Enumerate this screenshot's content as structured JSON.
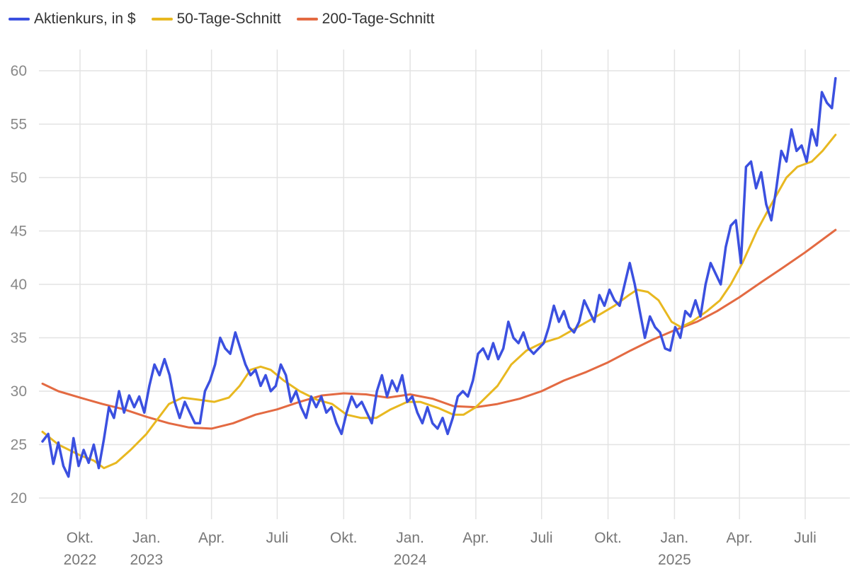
{
  "chart_data": {
    "type": "line",
    "title": "",
    "xlabel": "",
    "ylabel": "",
    "ylim": [
      20,
      60
    ],
    "y_ticks": [
      20,
      25,
      30,
      35,
      40,
      45,
      50,
      55,
      60
    ],
    "grid": true,
    "legend_position": "top-left",
    "x_ticks": [
      {
        "date": "2022-10-01",
        "label": "Okt.",
        "year": "2022"
      },
      {
        "date": "2023-01-01",
        "label": "Jan.",
        "year": "2023"
      },
      {
        "date": "2023-04-01",
        "label": "Apr.",
        "year": ""
      },
      {
        "date": "2023-07-01",
        "label": "Juli",
        "year": ""
      },
      {
        "date": "2023-10-01",
        "label": "Okt.",
        "year": ""
      },
      {
        "date": "2024-01-01",
        "label": "Jan.",
        "year": "2024"
      },
      {
        "date": "2024-04-01",
        "label": "Apr.",
        "year": ""
      },
      {
        "date": "2024-07-01",
        "label": "Juli",
        "year": ""
      },
      {
        "date": "2024-10-01",
        "label": "Okt.",
        "year": ""
      },
      {
        "date": "2025-01-01",
        "label": "Jan.",
        "year": "2025"
      },
      {
        "date": "2025-04-01",
        "label": "Apr.",
        "year": ""
      },
      {
        "date": "2025-07-01",
        "label": "Juli",
        "year": ""
      }
    ],
    "series": [
      {
        "name": "Aktienkurs, in $",
        "color": "#3b50e0",
        "points": [
          [
            "2022-08-10",
            25.3
          ],
          [
            "2022-08-18",
            26.0
          ],
          [
            "2022-08-25",
            23.2
          ],
          [
            "2022-09-01",
            25.2
          ],
          [
            "2022-09-08",
            23.0
          ],
          [
            "2022-09-15",
            22.0
          ],
          [
            "2022-09-22",
            25.6
          ],
          [
            "2022-09-29",
            23.0
          ],
          [
            "2022-10-06",
            24.5
          ],
          [
            "2022-10-13",
            23.3
          ],
          [
            "2022-10-20",
            25.0
          ],
          [
            "2022-10-27",
            22.8
          ],
          [
            "2022-11-03",
            25.5
          ],
          [
            "2022-11-10",
            28.5
          ],
          [
            "2022-11-17",
            27.5
          ],
          [
            "2022-11-24",
            30.0
          ],
          [
            "2022-12-01",
            28.0
          ],
          [
            "2022-12-08",
            29.6
          ],
          [
            "2022-12-15",
            28.5
          ],
          [
            "2022-12-22",
            29.5
          ],
          [
            "2022-12-29",
            28.0
          ],
          [
            "2023-01-05",
            30.5
          ],
          [
            "2023-01-12",
            32.5
          ],
          [
            "2023-01-19",
            31.5
          ],
          [
            "2023-01-26",
            33.0
          ],
          [
            "2023-02-02",
            31.5
          ],
          [
            "2023-02-09",
            29.0
          ],
          [
            "2023-02-16",
            27.5
          ],
          [
            "2023-02-23",
            29.0
          ],
          [
            "2023-03-02",
            28.0
          ],
          [
            "2023-03-09",
            27.0
          ],
          [
            "2023-03-16",
            27.0
          ],
          [
            "2023-03-23",
            30.0
          ],
          [
            "2023-03-30",
            31.0
          ],
          [
            "2023-04-06",
            32.5
          ],
          [
            "2023-04-13",
            35.0
          ],
          [
            "2023-04-20",
            34.0
          ],
          [
            "2023-04-27",
            33.5
          ],
          [
            "2023-05-04",
            35.5
          ],
          [
            "2023-05-11",
            34.0
          ],
          [
            "2023-05-18",
            32.5
          ],
          [
            "2023-05-25",
            31.5
          ],
          [
            "2023-06-01",
            32.0
          ],
          [
            "2023-06-08",
            30.5
          ],
          [
            "2023-06-15",
            31.5
          ],
          [
            "2023-06-22",
            30.0
          ],
          [
            "2023-06-29",
            30.5
          ],
          [
            "2023-07-06",
            32.5
          ],
          [
            "2023-07-13",
            31.5
          ],
          [
            "2023-07-20",
            29.0
          ],
          [
            "2023-07-27",
            30.0
          ],
          [
            "2023-08-03",
            28.5
          ],
          [
            "2023-08-10",
            27.5
          ],
          [
            "2023-08-17",
            29.5
          ],
          [
            "2023-08-24",
            28.5
          ],
          [
            "2023-08-31",
            29.5
          ],
          [
            "2023-09-07",
            28.0
          ],
          [
            "2023-09-14",
            28.5
          ],
          [
            "2023-09-21",
            27.0
          ],
          [
            "2023-09-28",
            26.0
          ],
          [
            "2023-10-05",
            28.0
          ],
          [
            "2023-10-12",
            29.5
          ],
          [
            "2023-10-19",
            28.5
          ],
          [
            "2023-10-26",
            29.0
          ],
          [
            "2023-11-02",
            28.0
          ],
          [
            "2023-11-09",
            27.0
          ],
          [
            "2023-11-16",
            30.0
          ],
          [
            "2023-11-23",
            31.5
          ],
          [
            "2023-11-30",
            29.5
          ],
          [
            "2023-12-07",
            31.0
          ],
          [
            "2023-12-14",
            30.0
          ],
          [
            "2023-12-21",
            31.5
          ],
          [
            "2023-12-28",
            29.0
          ],
          [
            "2024-01-04",
            29.5
          ],
          [
            "2024-01-11",
            28.0
          ],
          [
            "2024-01-18",
            27.0
          ],
          [
            "2024-01-25",
            28.5
          ],
          [
            "2024-02-01",
            27.0
          ],
          [
            "2024-02-08",
            26.5
          ],
          [
            "2024-02-15",
            27.5
          ],
          [
            "2024-02-22",
            26.0
          ],
          [
            "2024-02-29",
            27.5
          ],
          [
            "2024-03-07",
            29.5
          ],
          [
            "2024-03-14",
            30.0
          ],
          [
            "2024-03-21",
            29.5
          ],
          [
            "2024-03-28",
            31.0
          ],
          [
            "2024-04-04",
            33.5
          ],
          [
            "2024-04-11",
            34.0
          ],
          [
            "2024-04-18",
            33.0
          ],
          [
            "2024-04-25",
            34.5
          ],
          [
            "2024-05-02",
            33.0
          ],
          [
            "2024-05-09",
            34.0
          ],
          [
            "2024-05-16",
            36.5
          ],
          [
            "2024-05-23",
            35.0
          ],
          [
            "2024-05-30",
            34.5
          ],
          [
            "2024-06-06",
            35.5
          ],
          [
            "2024-06-13",
            34.0
          ],
          [
            "2024-06-20",
            33.5
          ],
          [
            "2024-06-27",
            34.0
          ],
          [
            "2024-07-04",
            34.5
          ],
          [
            "2024-07-11",
            36.0
          ],
          [
            "2024-07-18",
            38.0
          ],
          [
            "2024-07-25",
            36.5
          ],
          [
            "2024-08-01",
            37.5
          ],
          [
            "2024-08-08",
            36.0
          ],
          [
            "2024-08-15",
            35.5
          ],
          [
            "2024-08-22",
            36.5
          ],
          [
            "2024-08-29",
            38.5
          ],
          [
            "2024-09-05",
            37.5
          ],
          [
            "2024-09-12",
            36.5
          ],
          [
            "2024-09-19",
            39.0
          ],
          [
            "2024-09-26",
            38.0
          ],
          [
            "2024-10-03",
            39.5
          ],
          [
            "2024-10-10",
            38.5
          ],
          [
            "2024-10-17",
            38.0
          ],
          [
            "2024-10-24",
            40.0
          ],
          [
            "2024-10-31",
            42.0
          ],
          [
            "2024-11-07",
            40.0
          ],
          [
            "2024-11-14",
            37.5
          ],
          [
            "2024-11-21",
            35.0
          ],
          [
            "2024-11-28",
            37.0
          ],
          [
            "2024-12-05",
            36.0
          ],
          [
            "2024-12-12",
            35.5
          ],
          [
            "2024-12-19",
            34.0
          ],
          [
            "2024-12-26",
            33.8
          ],
          [
            "2025-01-02",
            36.0
          ],
          [
            "2025-01-09",
            35.0
          ],
          [
            "2025-01-16",
            37.5
          ],
          [
            "2025-01-23",
            37.0
          ],
          [
            "2025-01-30",
            38.5
          ],
          [
            "2025-02-06",
            37.0
          ],
          [
            "2025-02-13",
            40.0
          ],
          [
            "2025-02-20",
            42.0
          ],
          [
            "2025-02-27",
            41.0
          ],
          [
            "2025-03-06",
            40.0
          ],
          [
            "2025-03-13",
            43.5
          ],
          [
            "2025-03-20",
            45.5
          ],
          [
            "2025-03-27",
            46.0
          ],
          [
            "2025-04-03",
            42.0
          ],
          [
            "2025-04-10",
            51.0
          ],
          [
            "2025-04-17",
            51.5
          ],
          [
            "2025-04-24",
            49.0
          ],
          [
            "2025-05-01",
            50.5
          ],
          [
            "2025-05-08",
            47.5
          ],
          [
            "2025-05-15",
            46.0
          ],
          [
            "2025-05-22",
            49.0
          ],
          [
            "2025-05-29",
            52.5
          ],
          [
            "2025-06-05",
            51.5
          ],
          [
            "2025-06-12",
            54.5
          ],
          [
            "2025-06-19",
            52.5
          ],
          [
            "2025-06-26",
            53.0
          ],
          [
            "2025-07-03",
            51.5
          ],
          [
            "2025-07-10",
            54.5
          ],
          [
            "2025-07-17",
            53.0
          ],
          [
            "2025-07-24",
            58.0
          ],
          [
            "2025-07-31",
            57.0
          ],
          [
            "2025-08-07",
            56.5
          ],
          [
            "2025-08-12",
            59.3
          ]
        ]
      },
      {
        "name": "50-Tage-Schnitt",
        "color": "#e8b820",
        "points": [
          [
            "2022-08-10",
            26.2
          ],
          [
            "2022-09-01",
            25.0
          ],
          [
            "2022-10-01",
            24.0
          ],
          [
            "2022-10-20",
            23.5
          ],
          [
            "2022-11-03",
            22.8
          ],
          [
            "2022-11-20",
            23.3
          ],
          [
            "2022-12-10",
            24.5
          ],
          [
            "2023-01-01",
            26.0
          ],
          [
            "2023-02-01",
            28.8
          ],
          [
            "2023-02-20",
            29.4
          ],
          [
            "2023-03-15",
            29.2
          ],
          [
            "2023-04-05",
            29.0
          ],
          [
            "2023-04-25",
            29.4
          ],
          [
            "2023-05-10",
            30.5
          ],
          [
            "2023-05-25",
            32.0
          ],
          [
            "2023-06-08",
            32.3
          ],
          [
            "2023-06-22",
            32.0
          ],
          [
            "2023-07-10",
            31.0
          ],
          [
            "2023-08-01",
            30.0
          ],
          [
            "2023-08-25",
            29.2
          ],
          [
            "2023-09-15",
            28.8
          ],
          [
            "2023-10-05",
            27.8
          ],
          [
            "2023-10-25",
            27.5
          ],
          [
            "2023-11-15",
            27.5
          ],
          [
            "2023-12-05",
            28.3
          ],
          [
            "2023-12-28",
            29.0
          ],
          [
            "2024-01-15",
            29.0
          ],
          [
            "2024-02-10",
            28.4
          ],
          [
            "2024-03-01",
            27.8
          ],
          [
            "2024-03-15",
            27.8
          ],
          [
            "2024-04-01",
            28.5
          ],
          [
            "2024-05-01",
            30.5
          ],
          [
            "2024-05-20",
            32.5
          ],
          [
            "2024-06-10",
            33.8
          ],
          [
            "2024-07-01",
            34.5
          ],
          [
            "2024-07-25",
            35.0
          ],
          [
            "2024-08-20",
            36.0
          ],
          [
            "2024-09-15",
            37.0
          ],
          [
            "2024-10-10",
            38.0
          ],
          [
            "2024-10-30",
            39.0
          ],
          [
            "2024-11-10",
            39.5
          ],
          [
            "2024-11-25",
            39.3
          ],
          [
            "2024-12-10",
            38.5
          ],
          [
            "2024-12-28",
            36.5
          ],
          [
            "2025-01-10",
            36.0
          ],
          [
            "2025-01-25",
            36.5
          ],
          [
            "2025-02-15",
            37.5
          ],
          [
            "2025-03-05",
            38.5
          ],
          [
            "2025-03-20",
            40.0
          ],
          [
            "2025-04-05",
            42.0
          ],
          [
            "2025-04-25",
            45.0
          ],
          [
            "2025-05-15",
            47.5
          ],
          [
            "2025-06-05",
            50.0
          ],
          [
            "2025-06-20",
            51.0
          ],
          [
            "2025-07-10",
            51.5
          ],
          [
            "2025-07-25",
            52.5
          ],
          [
            "2025-08-12",
            54.0
          ]
        ]
      },
      {
        "name": "200-Tage-Schnitt",
        "color": "#e36a42",
        "points": [
          [
            "2022-08-10",
            30.7
          ],
          [
            "2022-09-01",
            30.0
          ],
          [
            "2022-10-01",
            29.4
          ],
          [
            "2022-11-01",
            28.8
          ],
          [
            "2022-12-01",
            28.3
          ],
          [
            "2023-01-01",
            27.6
          ],
          [
            "2023-02-01",
            27.0
          ],
          [
            "2023-03-01",
            26.6
          ],
          [
            "2023-04-01",
            26.5
          ],
          [
            "2023-05-01",
            27.0
          ],
          [
            "2023-06-01",
            27.8
          ],
          [
            "2023-07-01",
            28.3
          ],
          [
            "2023-08-01",
            29.0
          ],
          [
            "2023-09-01",
            29.6
          ],
          [
            "2023-10-01",
            29.8
          ],
          [
            "2023-11-01",
            29.7
          ],
          [
            "2023-12-01",
            29.4
          ],
          [
            "2024-01-01",
            29.7
          ],
          [
            "2024-02-01",
            29.3
          ],
          [
            "2024-03-01",
            28.6
          ],
          [
            "2024-04-01",
            28.5
          ],
          [
            "2024-05-01",
            28.8
          ],
          [
            "2024-06-01",
            29.3
          ],
          [
            "2024-07-01",
            30.0
          ],
          [
            "2024-08-01",
            31.0
          ],
          [
            "2024-09-01",
            31.8
          ],
          [
            "2024-10-01",
            32.7
          ],
          [
            "2024-11-01",
            33.8
          ],
          [
            "2024-12-01",
            34.8
          ],
          [
            "2025-01-01",
            35.7
          ],
          [
            "2025-02-01",
            36.5
          ],
          [
            "2025-03-01",
            37.5
          ],
          [
            "2025-04-01",
            38.8
          ],
          [
            "2025-05-01",
            40.2
          ],
          [
            "2025-06-01",
            41.6
          ],
          [
            "2025-07-01",
            43.0
          ],
          [
            "2025-08-12",
            45.1
          ]
        ]
      }
    ]
  }
}
